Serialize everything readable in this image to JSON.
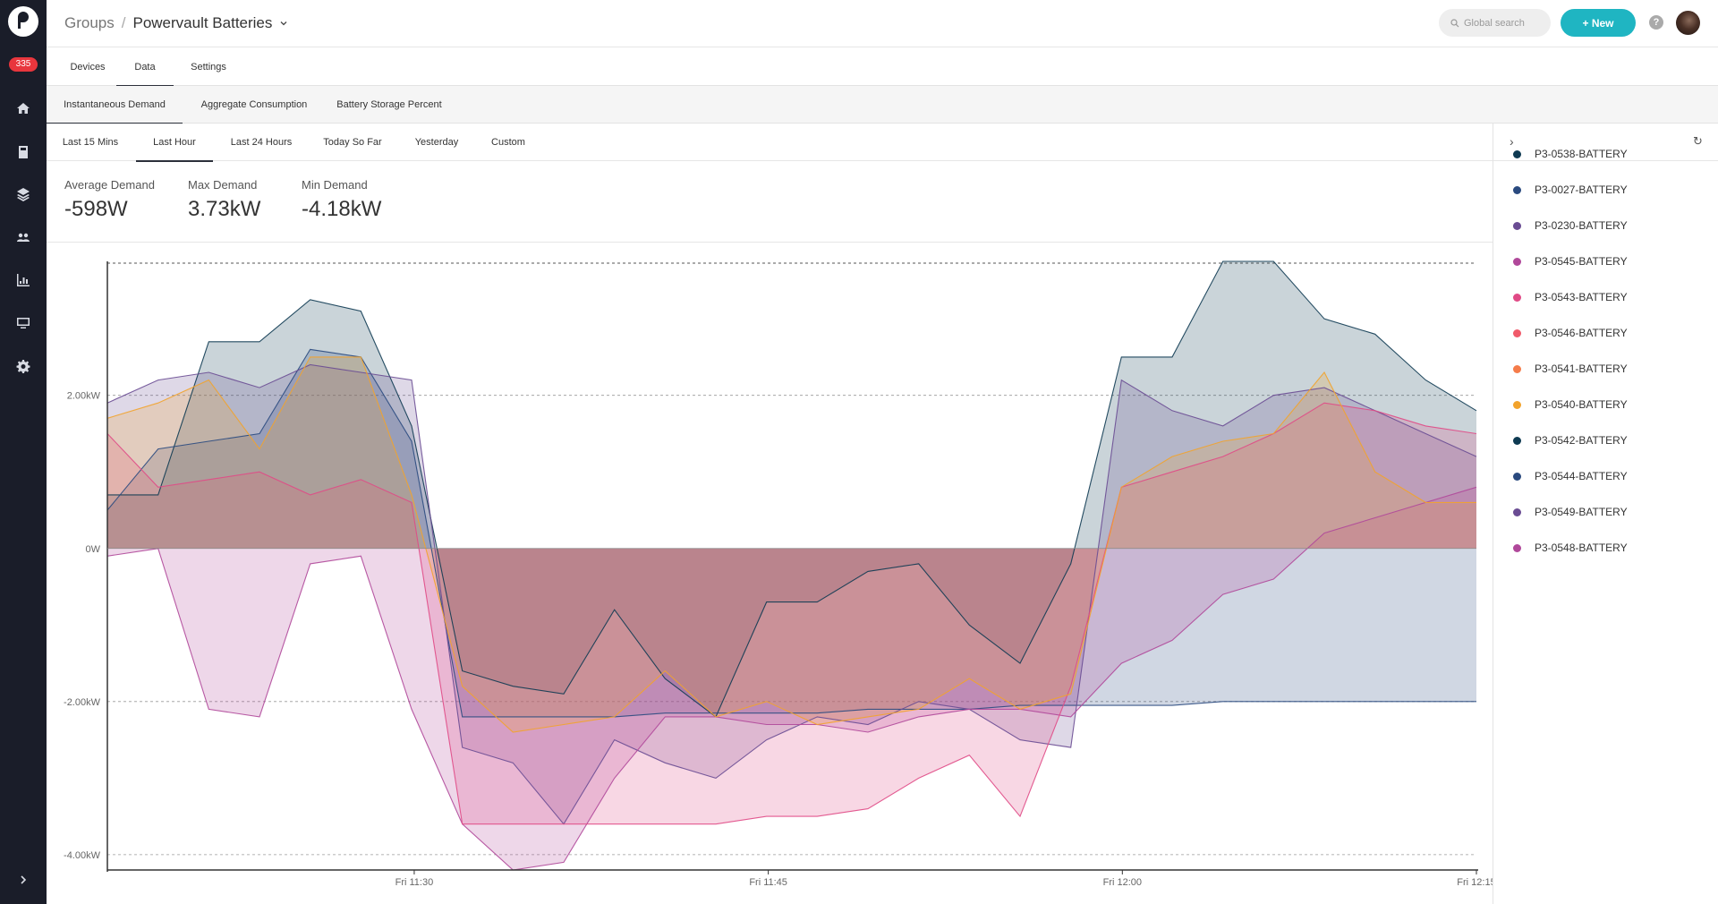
{
  "sidebar": {
    "notification_count": "335",
    "items": [
      {
        "icon": "home-icon"
      },
      {
        "icon": "calculator-icon"
      },
      {
        "icon": "layers-icon"
      },
      {
        "icon": "users-icon"
      },
      {
        "icon": "chart-icon"
      },
      {
        "icon": "monitor-icon"
      },
      {
        "icon": "gear-icon"
      }
    ],
    "expand_icon": "chevron-right-icon"
  },
  "header": {
    "breadcrumb_root": "Groups",
    "breadcrumb_separator": "/",
    "breadcrumb_current": "Powervault Batteries",
    "search_placeholder": "Global search",
    "new_button": "+ New",
    "help": "?"
  },
  "tabs_main": [
    "Devices",
    "Data",
    "Settings"
  ],
  "tabs_main_active": "Data",
  "tabs_data": [
    "Instantaneous Demand",
    "Aggregate Consumption",
    "Battery Storage Percent"
  ],
  "tabs_data_active": "Instantaneous Demand",
  "tabs_range": [
    "Last 15 Mins",
    "Last Hour",
    "Last 24 Hours",
    "Today So Far",
    "Yesterday",
    "Custom"
  ],
  "tabs_range_active": "Last Hour",
  "stats": {
    "average_label": "Average Demand",
    "average_value": "-598W",
    "max_label": "Max Demand",
    "max_value": "3.73kW",
    "min_label": "Min Demand",
    "min_value": "-4.18kW"
  },
  "legend": [
    {
      "name": "P3-0538-BATTERY",
      "color": "#0e3a52"
    },
    {
      "name": "P3-0027-BATTERY",
      "color": "#2a4a7f"
    },
    {
      "name": "P3-0230-BATTERY",
      "color": "#6a4c93"
    },
    {
      "name": "P3-0545-BATTERY",
      "color": "#b0489a"
    },
    {
      "name": "P3-0543-BATTERY",
      "color": "#e04a86"
    },
    {
      "name": "P3-0546-BATTERY",
      "color": "#f05a6a"
    },
    {
      "name": "P3-0541-BATTERY",
      "color": "#f57c4a"
    },
    {
      "name": "P3-0540-BATTERY",
      "color": "#f2a32c"
    },
    {
      "name": "P3-0542-BATTERY",
      "color": "#0e3a52"
    },
    {
      "name": "P3-0544-BATTERY",
      "color": "#2a4a7f"
    },
    {
      "name": "P3-0549-BATTERY",
      "color": "#6a4c93"
    },
    {
      "name": "P3-0548-BATTERY",
      "color": "#b0489a"
    }
  ],
  "chart_data": {
    "type": "area",
    "x_ticks": [
      "Fri 11:30",
      "Fri 11:45",
      "Fri 12:00",
      "Fri 12:15"
    ],
    "y_ticks": [
      "2.00kW",
      "0W",
      "-2.00kW",
      "-4.00kW"
    ],
    "y_tick_values": [
      2000,
      0,
      -2000,
      -4000
    ],
    "ylim": [
      -4200,
      3750
    ],
    "x_range": [
      "11:17",
      "12:15"
    ],
    "x_tick_minutes": [
      13,
      28,
      43,
      58
    ],
    "series": [
      {
        "name": "P3-0538-BATTERY",
        "color": "#0e3a52",
        "values": [
          700,
          700,
          2700,
          2700,
          3250,
          3100,
          1600,
          -1600,
          -1800,
          -1900,
          -800,
          -1700,
          -2200,
          -700,
          -700,
          -300,
          -200,
          -1000,
          -1500,
          -200,
          2500,
          2500,
          3750,
          3750,
          3000,
          2800,
          2200,
          1800
        ]
      },
      {
        "name": "P3-0027-BATTERY",
        "color": "#2a4a7f",
        "values": [
          500,
          1300,
          1400,
          1500,
          2600,
          2500,
          1400,
          -2200,
          -2200,
          -2200,
          -2200,
          -2150,
          -2150,
          -2150,
          -2150,
          -2100,
          -2100,
          -2100,
          -2050,
          -2050,
          -2050,
          -2050,
          -2000,
          -2000,
          -2000,
          -2000,
          -2000,
          -2000
        ]
      },
      {
        "name": "P3-0230-BATTERY",
        "color": "#6a4c93",
        "values": [
          1900,
          2200,
          2300,
          2100,
          2400,
          2300,
          2200,
          -2600,
          -2800,
          -3600,
          -2500,
          -2800,
          -3000,
          -2500,
          -2200,
          -2300,
          -2000,
          -2100,
          -2500,
          -2600,
          2200,
          1800,
          1600,
          2000,
          2100,
          1800,
          1500,
          1200
        ]
      },
      {
        "name": "P3-0545-BATTERY",
        "color": "#b0489a",
        "values": [
          -100,
          0,
          -2100,
          -2200,
          -200,
          -100,
          -2100,
          -3600,
          -4200,
          -4100,
          -3000,
          -2200,
          -2200,
          -2300,
          -2300,
          -2400,
          -2200,
          -2100,
          -2100,
          -2200,
          -1500,
          -1200,
          -600,
          -400,
          200,
          400,
          600,
          800
        ]
      },
      {
        "name": "P3-0543-BATTERY",
        "color": "#e04a86",
        "values": [
          1500,
          800,
          900,
          1000,
          700,
          900,
          600,
          -3600,
          -3600,
          -3600,
          -3600,
          -3600,
          -3600,
          -3500,
          -3500,
          -3400,
          -3000,
          -2700,
          -3500,
          -1800,
          800,
          1000,
          1200,
          1500,
          1900,
          1800,
          1600,
          1500
        ]
      },
      {
        "name": "P3-0540-BATTERY",
        "color": "#f2a32c",
        "values": [
          1700,
          1900,
          2200,
          1300,
          2500,
          2500,
          700,
          -1800,
          -2400,
          -2300,
          -2200,
          -1600,
          -2200,
          -2000,
          -2300,
          -2200,
          -2100,
          -1700,
          -2100,
          -1900,
          800,
          1200,
          1400,
          1500,
          2300,
          1000,
          600,
          600
        ]
      }
    ]
  }
}
